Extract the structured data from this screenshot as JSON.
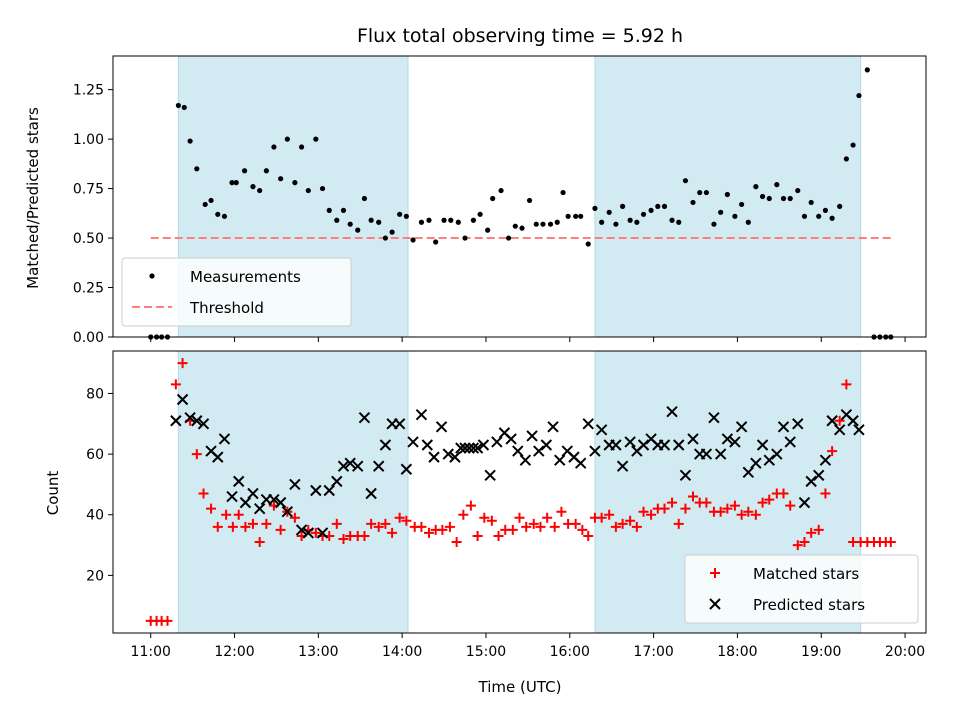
{
  "chart_data": [
    {
      "type": "scatter",
      "title": "Flux total observing time = 5.92 h",
      "xlabel": "",
      "ylabel": "Matched/Predicted stars",
      "xlim": [
        10.55,
        20.25
      ],
      "ylim": [
        0,
        1.42
      ],
      "yticks": [
        0.0,
        0.25,
        0.5,
        0.75,
        1.0,
        1.25
      ],
      "ytick_labels": [
        "0.00",
        "0.25",
        "0.50",
        "0.75",
        "1.00",
        "1.25"
      ],
      "shaded_intervals": [
        [
          11.33,
          14.07
        ],
        [
          16.3,
          19.47
        ]
      ],
      "shade_color": "#add8e6",
      "threshold": {
        "name": "Threshold",
        "value": 0.5,
        "x_range": [
          11.0,
          19.83
        ],
        "color": "#ff7f7f"
      },
      "legend_position": "lower-left",
      "series": [
        {
          "name": "Measurements",
          "color": "#000000",
          "marker": "dot",
          "x": [
            11.0,
            11.07,
            11.13,
            11.2,
            11.33,
            11.4,
            11.47,
            11.55,
            11.65,
            11.72,
            11.8,
            11.88,
            11.97,
            12.02,
            12.12,
            12.22,
            12.3,
            12.38,
            12.47,
            12.55,
            12.63,
            12.72,
            12.8,
            12.88,
            12.97,
            13.05,
            13.13,
            13.22,
            13.3,
            13.38,
            13.47,
            13.55,
            13.63,
            13.72,
            13.8,
            13.88,
            13.97,
            14.05,
            14.13,
            14.23,
            14.32,
            14.4,
            14.5,
            14.58,
            14.67,
            14.75,
            14.85,
            14.93,
            15.02,
            15.08,
            15.18,
            15.27,
            15.35,
            15.43,
            15.52,
            15.6,
            15.68,
            15.77,
            15.85,
            15.92,
            15.98,
            16.07,
            16.13,
            16.22,
            16.3,
            16.38,
            16.47,
            16.55,
            16.63,
            16.72,
            16.8,
            16.88,
            16.97,
            17.05,
            17.13,
            17.22,
            17.3,
            17.38,
            17.47,
            17.55,
            17.63,
            17.72,
            17.8,
            17.88,
            17.97,
            18.05,
            18.13,
            18.22,
            18.3,
            18.38,
            18.47,
            18.55,
            18.63,
            18.72,
            18.8,
            18.88,
            18.97,
            19.05,
            19.13,
            19.22,
            19.3,
            19.38,
            19.45,
            19.55,
            19.63,
            19.7,
            19.77,
            19.83
          ],
          "y": [
            0.0,
            0.0,
            0.0,
            0.0,
            1.17,
            1.16,
            0.99,
            0.85,
            0.67,
            0.69,
            0.62,
            0.61,
            0.78,
            0.78,
            0.84,
            0.76,
            0.74,
            0.84,
            0.96,
            0.8,
            1.0,
            0.78,
            0.96,
            0.74,
            1.0,
            0.75,
            0.64,
            0.59,
            0.64,
            0.57,
            0.54,
            0.7,
            0.59,
            0.58,
            0.5,
            0.53,
            0.62,
            0.61,
            0.49,
            0.58,
            0.59,
            0.48,
            0.59,
            0.59,
            0.58,
            0.5,
            0.59,
            0.62,
            0.54,
            0.7,
            0.74,
            0.5,
            0.56,
            0.55,
            0.69,
            0.57,
            0.57,
            0.57,
            0.58,
            0.73,
            0.61,
            0.61,
            0.61,
            0.47,
            0.65,
            0.58,
            0.63,
            0.57,
            0.66,
            0.59,
            0.58,
            0.62,
            0.64,
            0.66,
            0.66,
            0.59,
            0.58,
            0.79,
            0.68,
            0.73,
            0.73,
            0.57,
            0.63,
            0.72,
            0.61,
            0.67,
            0.58,
            0.76,
            0.71,
            0.7,
            0.77,
            0.7,
            0.7,
            0.74,
            0.61,
            0.68,
            0.61,
            0.64,
            0.6,
            0.66,
            0.9,
            0.97,
            1.22,
            1.35,
            0.0,
            0.0,
            0.0,
            0.0
          ]
        }
      ]
    },
    {
      "type": "scatter",
      "title": "",
      "xlabel": "Time (UTC)",
      "ylabel": "Count",
      "xlim": [
        10.55,
        20.25
      ],
      "ylim": [
        1,
        94
      ],
      "xticks": [
        11,
        12,
        13,
        14,
        15,
        16,
        17,
        18,
        19,
        20
      ],
      "xtick_labels": [
        "11:00",
        "12:00",
        "13:00",
        "14:00",
        "15:00",
        "16:00",
        "17:00",
        "18:00",
        "19:00",
        "20:00"
      ],
      "yticks": [
        20,
        40,
        60,
        80
      ],
      "ytick_labels": [
        "20",
        "40",
        "60",
        "80"
      ],
      "shaded_intervals": [
        [
          11.33,
          14.07
        ],
        [
          16.3,
          19.47
        ]
      ],
      "shade_color": "#add8e6",
      "legend_position": "lower-right",
      "series": [
        {
          "name": "Matched stars",
          "color": "#ff0000",
          "marker": "plus",
          "x": [
            11.0,
            11.07,
            11.13,
            11.2,
            11.3,
            11.38,
            11.47,
            11.55,
            11.63,
            11.72,
            11.8,
            11.9,
            11.98,
            12.05,
            12.13,
            12.22,
            12.3,
            12.38,
            12.47,
            12.55,
            12.63,
            12.72,
            12.8,
            12.88,
            12.97,
            13.05,
            13.13,
            13.22,
            13.3,
            13.38,
            13.47,
            13.55,
            13.63,
            13.72,
            13.8,
            13.88,
            13.97,
            14.05,
            14.15,
            14.23,
            14.32,
            14.4,
            14.48,
            14.57,
            14.65,
            14.73,
            14.82,
            14.9,
            14.98,
            15.07,
            15.15,
            15.23,
            15.32,
            15.4,
            15.48,
            15.57,
            15.65,
            15.73,
            15.82,
            15.9,
            15.98,
            16.07,
            16.15,
            16.22,
            16.3,
            16.38,
            16.47,
            16.55,
            16.63,
            16.72,
            16.8,
            16.88,
            16.97,
            17.05,
            17.13,
            17.22,
            17.3,
            17.38,
            17.47,
            17.55,
            17.63,
            17.72,
            17.8,
            17.88,
            17.97,
            18.05,
            18.13,
            18.22,
            18.3,
            18.38,
            18.47,
            18.55,
            18.63,
            18.72,
            18.8,
            18.88,
            18.97,
            19.05,
            19.13,
            19.22,
            19.3,
            19.38,
            19.47,
            19.55,
            19.63,
            19.7,
            19.77,
            19.83
          ],
          "y": [
            5,
            5,
            5,
            5,
            83,
            90,
            71,
            60,
            47,
            42,
            36,
            40,
            36,
            40,
            36,
            37,
            31,
            37,
            43,
            35,
            41,
            39,
            33,
            35,
            34,
            33,
            33,
            37,
            32,
            33,
            33,
            33,
            37,
            36,
            37,
            34,
            39,
            38,
            36,
            36,
            34,
            35,
            35,
            36,
            31,
            40,
            43,
            33,
            39,
            38,
            33,
            35,
            35,
            39,
            36,
            37,
            36,
            39,
            36,
            41,
            37,
            37,
            35,
            33,
            39,
            39,
            40,
            36,
            37,
            38,
            36,
            41,
            40,
            42,
            42,
            44,
            37,
            42,
            46,
            44,
            44,
            41,
            41,
            42,
            43,
            40,
            41,
            40,
            44,
            45,
            47,
            47,
            43,
            30,
            31,
            34,
            35,
            47,
            61,
            71,
            83,
            31,
            31,
            31,
            31,
            31,
            31,
            31
          ]
        },
        {
          "name": "Predicted stars",
          "color": "#000000",
          "marker": "x",
          "x": [
            11.3,
            11.38,
            11.47,
            11.55,
            11.63,
            11.72,
            11.8,
            11.88,
            11.97,
            12.05,
            12.13,
            12.22,
            12.3,
            12.38,
            12.47,
            12.55,
            12.63,
            12.72,
            12.8,
            12.88,
            12.97,
            13.05,
            13.13,
            13.22,
            13.3,
            13.38,
            13.47,
            13.55,
            13.63,
            13.72,
            13.8,
            13.88,
            13.97,
            14.05,
            14.13,
            14.23,
            14.3,
            14.38,
            14.47,
            14.55,
            14.63,
            14.7,
            14.75,
            14.8,
            14.85,
            14.9,
            14.97,
            15.05,
            15.13,
            15.22,
            15.3,
            15.38,
            15.47,
            15.55,
            15.63,
            15.72,
            15.8,
            15.88,
            15.97,
            16.05,
            16.13,
            16.22,
            16.3,
            16.38,
            16.47,
            16.55,
            16.63,
            16.72,
            16.8,
            16.88,
            16.97,
            17.05,
            17.13,
            17.22,
            17.3,
            17.38,
            17.47,
            17.55,
            17.63,
            17.72,
            17.8,
            17.88,
            17.97,
            18.05,
            18.13,
            18.22,
            18.3,
            18.38,
            18.47,
            18.55,
            18.63,
            18.72,
            18.8,
            18.88,
            18.97,
            19.05,
            19.13,
            19.22,
            19.3,
            19.38,
            19.45
          ],
          "y": [
            71,
            78,
            72,
            71,
            70,
            61,
            59,
            65,
            46,
            51,
            44,
            47,
            42,
            45,
            45,
            44,
            41,
            50,
            35,
            34,
            48,
            34,
            48,
            51,
            56,
            57,
            56,
            72,
            47,
            56,
            63,
            70,
            70,
            55,
            64,
            73,
            63,
            59,
            69,
            60,
            59,
            62,
            62,
            62,
            62,
            62,
            63,
            53,
            64,
            67,
            65,
            61,
            58,
            66,
            61,
            63,
            69,
            58,
            61,
            59,
            57,
            70,
            61,
            68,
            63,
            63,
            56,
            64,
            61,
            63,
            65,
            63,
            63,
            74,
            63,
            53,
            65,
            60,
            60,
            72,
            60,
            65,
            64,
            69,
            54,
            57,
            63,
            58,
            60,
            69,
            64,
            70,
            44,
            51,
            53,
            58,
            71,
            68,
            73,
            71,
            68
          ]
        }
      ]
    }
  ]
}
